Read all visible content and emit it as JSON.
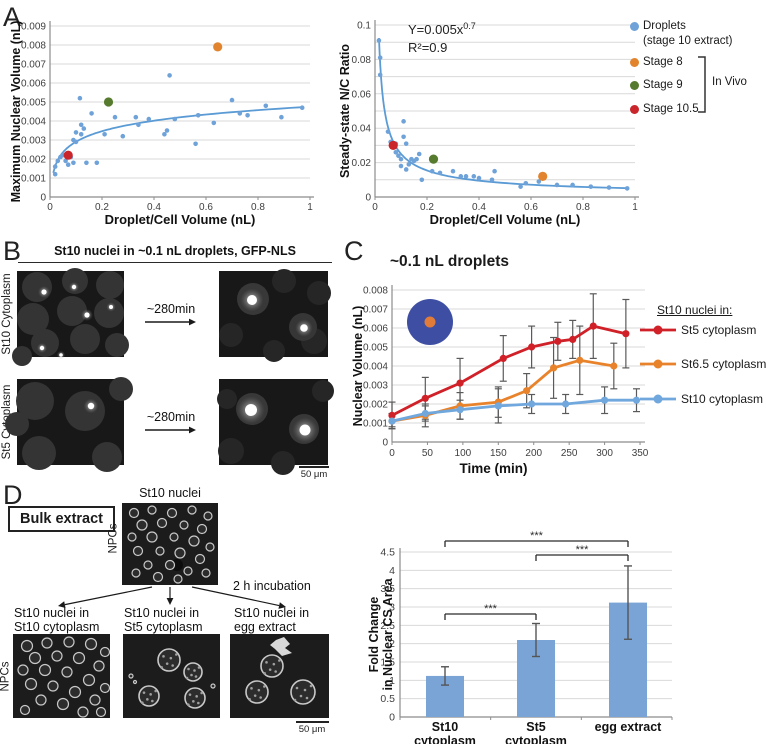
{
  "panels": {
    "A": {
      "letter": "A",
      "legend": {
        "items": [
          {
            "label": "Droplets",
            "label2": "(stage 10 extract)",
            "color": "#6ea2d8"
          },
          {
            "label": "Stage 8",
            "color": "#e2842e"
          },
          {
            "label": "Stage 9",
            "color": "#567b2f"
          },
          {
            "label": "Stage 10.5",
            "color": "#c9252b"
          }
        ],
        "bracket_label": "In Vivo"
      }
    },
    "B": {
      "letter": "B",
      "title": "St10 nuclei in ~0.1 nL droplets, GFP-NLS",
      "row_labels": [
        "St10 Cytoplasm",
        "St5 Cytoplasm"
      ],
      "arrow_label": "~280min",
      "scale_bar": "50 μm"
    },
    "C": {
      "letter": "C",
      "title": "~0.1 nL droplets"
    },
    "D": {
      "letter": "D",
      "box_label": "Bulk extract",
      "source_label": "St10 nuclei",
      "npcs_label": "NPCs",
      "incubation_label": "2 h incubation",
      "branches": [
        {
          "line1": "St10 nuclei in",
          "line2": "St10 cytoplasm"
        },
        {
          "line1": "St10 nuclei in",
          "line2": "St5 cytoplasm"
        },
        {
          "line1": "St10 nuclei in",
          "line2": "egg extract"
        }
      ],
      "scale_bar": "50 μm"
    }
  },
  "chart_data": [
    {
      "id": "chart-a-left",
      "type": "scatter",
      "xlabel": "Droplet/Cell Volume (nL)",
      "ylabel": "Maximum Nuclear Volume (nL)",
      "xlim": [
        0,
        1
      ],
      "ylim": [
        0,
        0.009
      ],
      "xticks": [
        0,
        0.2,
        0.4,
        0.6,
        0.8,
        1
      ],
      "yticks": [
        "0",
        "0.001",
        "0.002",
        "0.003",
        "0.004",
        "0.005",
        "0.006",
        "0.007",
        "0.008",
        "0.009"
      ],
      "point_color": "#6ea2d8",
      "trend": {
        "type": "log",
        "a": 0.0008,
        "b": 0.00475,
        "xmin": 0.013,
        "xmax": 0.97,
        "color": "#5b9bd5"
      },
      "droplet_points": [
        [
          0.02,
          0.0012
        ],
        [
          0.02,
          0.0016
        ],
        [
          0.03,
          0.0019
        ],
        [
          0.04,
          0.0021
        ],
        [
          0.05,
          0.0022
        ],
        [
          0.06,
          0.0019
        ],
        [
          0.07,
          0.0017
        ],
        [
          0.08,
          0.0021
        ],
        [
          0.09,
          0.0018
        ],
        [
          0.09,
          0.003
        ],
        [
          0.1,
          0.0034
        ],
        [
          0.1,
          0.0029
        ],
        [
          0.115,
          0.0052
        ],
        [
          0.12,
          0.0038
        ],
        [
          0.12,
          0.0033
        ],
        [
          0.13,
          0.0036
        ],
        [
          0.14,
          0.0018
        ],
        [
          0.16,
          0.0044
        ],
        [
          0.18,
          0.0018
        ],
        [
          0.21,
          0.0033
        ],
        [
          0.25,
          0.0042
        ],
        [
          0.28,
          0.0032
        ],
        [
          0.33,
          0.0042
        ],
        [
          0.34,
          0.0038
        ],
        [
          0.38,
          0.0041
        ],
        [
          0.44,
          0.0033
        ],
        [
          0.46,
          0.0064
        ],
        [
          0.45,
          0.0035
        ],
        [
          0.48,
          0.0041
        ],
        [
          0.56,
          0.0028
        ],
        [
          0.57,
          0.0043
        ],
        [
          0.63,
          0.0039
        ],
        [
          0.7,
          0.0051
        ],
        [
          0.73,
          0.0044
        ],
        [
          0.76,
          0.0043
        ],
        [
          0.83,
          0.0048
        ],
        [
          0.89,
          0.0042
        ],
        [
          0.97,
          0.0047
        ]
      ],
      "invivo_points": [
        {
          "name": "Stage 8",
          "color": "#e2842e",
          "x": 0.645,
          "y": 0.0079
        },
        {
          "name": "Stage 9",
          "color": "#567b2f",
          "x": 0.225,
          "y": 0.005
        },
        {
          "name": "Stage 10.5",
          "color": "#c9252b",
          "x": 0.07,
          "y": 0.0022
        }
      ]
    },
    {
      "id": "chart-a-right",
      "type": "scatter",
      "xlabel": "Droplet/Cell Volume (nL)",
      "ylabel": "Steady-state N/C Ratio",
      "xlim": [
        0,
        1
      ],
      "ylim": [
        0,
        0.1
      ],
      "xticks": [
        0,
        0.2,
        0.4,
        0.6,
        0.8,
        1
      ],
      "yticks": [
        "0",
        "0.02",
        "0.04",
        "0.06",
        "0.08",
        "0.1"
      ],
      "minor_grid_step": 0.01,
      "point_color": "#6ea2d8",
      "annotation": {
        "base": "Y=0.005x",
        "exponent": "0.7",
        "r_squared": "R²=0.9"
      },
      "trend": {
        "type": "power",
        "a": 0.005,
        "b": -0.7,
        "xmin": 0.0155,
        "xmax": 0.97,
        "color": "#5b9bd5"
      },
      "droplet_points": [
        [
          0.015,
          0.091
        ],
        [
          0.02,
          0.081
        ],
        [
          0.02,
          0.071
        ],
        [
          0.05,
          0.038
        ],
        [
          0.06,
          0.032
        ],
        [
          0.08,
          0.031
        ],
        [
          0.08,
          0.026
        ],
        [
          0.09,
          0.024
        ],
        [
          0.1,
          0.022
        ],
        [
          0.1,
          0.018
        ],
        [
          0.11,
          0.044
        ],
        [
          0.11,
          0.035
        ],
        [
          0.12,
          0.031
        ],
        [
          0.12,
          0.016
        ],
        [
          0.13,
          0.019
        ],
        [
          0.14,
          0.022
        ],
        [
          0.15,
          0.021
        ],
        [
          0.16,
          0.022
        ],
        [
          0.17,
          0.025
        ],
        [
          0.18,
          0.01
        ],
        [
          0.22,
          0.015
        ],
        [
          0.25,
          0.014
        ],
        [
          0.3,
          0.015
        ],
        [
          0.33,
          0.012
        ],
        [
          0.35,
          0.012
        ],
        [
          0.38,
          0.012
        ],
        [
          0.4,
          0.011
        ],
        [
          0.45,
          0.01
        ],
        [
          0.46,
          0.015
        ],
        [
          0.56,
          0.006
        ],
        [
          0.58,
          0.008
        ],
        [
          0.63,
          0.009
        ],
        [
          0.7,
          0.007
        ],
        [
          0.76,
          0.007
        ],
        [
          0.83,
          0.006
        ],
        [
          0.9,
          0.0055
        ],
        [
          0.97,
          0.005
        ]
      ],
      "invivo_points": [
        {
          "name": "Stage 8",
          "color": "#e2842e",
          "x": 0.645,
          "y": 0.012
        },
        {
          "name": "Stage 9",
          "color": "#567b2f",
          "x": 0.225,
          "y": 0.022
        },
        {
          "name": "Stage 10.5",
          "color": "#c9252b",
          "x": 0.07,
          "y": 0.03
        }
      ]
    },
    {
      "id": "chart-c",
      "type": "line",
      "title": "~0.1 nL droplets",
      "xlabel": "Time (min)",
      "ylabel": "Nuclear Volume (nL)",
      "xlim": [
        0,
        357
      ],
      "ylim": [
        0,
        0.008
      ],
      "xticks": [
        0,
        50,
        100,
        150,
        200,
        250,
        300,
        350
      ],
      "yticks": [
        "0",
        "0.001",
        "0.002",
        "0.003",
        "0.004",
        "0.005",
        "0.006",
        "0.007",
        "0.008"
      ],
      "legend_title": "St10 nuclei in:",
      "series": [
        {
          "name": "St5 cytoplasm",
          "color": "#d02028",
          "x": [
            0,
            47,
            96,
            157,
            197,
            234,
            255,
            284,
            330
          ],
          "y": [
            0.0014,
            0.0023,
            0.0031,
            0.0044,
            0.005,
            0.0053,
            0.0054,
            0.0061,
            0.0057
          ],
          "err": [
            0.0007,
            0.0011,
            0.0013,
            0.0012,
            0.0011,
            0.001,
            0.001,
            0.0017,
            0.0018
          ]
        },
        {
          "name": "St6.5 cytoplasm",
          "color": "#e8832c",
          "x": [
            0,
            47,
            96,
            150,
            190,
            228,
            265,
            313
          ],
          "y": [
            0.0011,
            0.0014,
            0.0019,
            0.0021,
            0.0027,
            0.0039,
            0.0043,
            0.004
          ],
          "err": [
            0.0003,
            0.0006,
            0.0007,
            0.0008,
            0.0009,
            0.0016,
            0.0018,
            0.0012
          ]
        },
        {
          "name": "St10 cytoplasm",
          "color": "#70a7dd",
          "x": [
            0,
            47,
            96,
            150,
            197,
            245,
            300,
            345
          ],
          "y": [
            0.0011,
            0.0015,
            0.0017,
            0.0019,
            0.002,
            0.002,
            0.0022,
            0.0022
          ],
          "err": [
            0.0004,
            0.0004,
            0.0005,
            0.0009,
            0.0005,
            0.0005,
            0.0007,
            0.0006
          ]
        }
      ],
      "inset": {
        "droplet_color": "#3e4fa3",
        "nucleus_color": "#e07b39"
      }
    },
    {
      "id": "chart-d-bar",
      "type": "bar",
      "ylabel_lines": [
        "Fold Change",
        "in Nuclear CS Area"
      ],
      "categories": [
        [
          "St10",
          "cytoplasm"
        ],
        [
          "St5",
          "cytoplasm"
        ],
        [
          "egg extract"
        ]
      ],
      "values": [
        1.12,
        2.1,
        3.12
      ],
      "errors": [
        0.25,
        0.45,
        1.0
      ],
      "ylim": [
        0,
        4.5
      ],
      "yticks": [
        "0",
        "0.5",
        "1",
        "1.5",
        "2",
        "2.5",
        "3",
        "3.5",
        "4",
        "4.5"
      ],
      "bar_color": "#7aa4d6",
      "significance": [
        {
          "from": 0,
          "to": 2,
          "label": "***"
        },
        {
          "from": 1,
          "to": 2,
          "label": "***"
        },
        {
          "from": 0,
          "to": 1,
          "label": "***"
        }
      ]
    }
  ]
}
